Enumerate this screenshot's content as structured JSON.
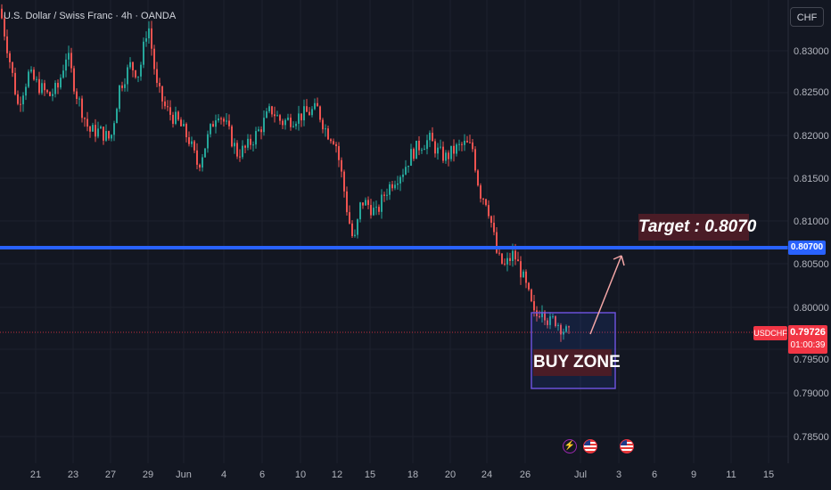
{
  "header": {
    "title": "U.S. Dollar / Swiss Franc · 4h · OANDA"
  },
  "currency_badge": "CHF",
  "price_axis": [
    "0.83000",
    "0.82500",
    "0.82000",
    "0.81500",
    "0.81000",
    "0.80500",
    "0.80000",
    "0.79500",
    "0.79000",
    "0.78500"
  ],
  "time_axis": [
    "21",
    "23",
    "27",
    "29",
    "Jun",
    "4",
    "6",
    "10",
    "12",
    "15",
    "18",
    "20",
    "24",
    "26",
    "Jul",
    "3",
    "6",
    "9",
    "11",
    "15"
  ],
  "level_line": {
    "price": "0.80700",
    "color": "#2962ff"
  },
  "last_price": {
    "symbol": "USDCHF",
    "price": "0.79726",
    "countdown": "01:00:39",
    "color": "#f23645"
  },
  "annotations": {
    "target": "Target : 0.8070",
    "buy_zone": "BUY ZONE"
  },
  "events": [
    {
      "type": "flash-icon"
    },
    {
      "type": "us-flag-icon"
    },
    {
      "type": "us-flag-icon"
    }
  ],
  "colors": {
    "background": "#131722",
    "up": "#26a69a",
    "down": "#ef5350",
    "grid": "#1e222d"
  },
  "chart_data": {
    "type": "candlestick",
    "symbol": "USDCHF",
    "timeframe": "4h",
    "ylim": [
      0.7825,
      0.8355
    ],
    "close_path": [
      [
        0,
        0.8345
      ],
      [
        12,
        0.828
      ],
      [
        20,
        0.8235
      ],
      [
        32,
        0.827
      ],
      [
        45,
        0.8255
      ],
      [
        55,
        0.8245
      ],
      [
        65,
        0.8255
      ],
      [
        75,
        0.8295
      ],
      [
        85,
        0.825
      ],
      [
        100,
        0.8205
      ],
      [
        112,
        0.8205
      ],
      [
        124,
        0.8195
      ],
      [
        134,
        0.8255
      ],
      [
        146,
        0.828
      ],
      [
        156,
        0.827
      ],
      [
        166,
        0.833
      ],
      [
        176,
        0.8255
      ],
      [
        186,
        0.823
      ],
      [
        200,
        0.8215
      ],
      [
        212,
        0.8195
      ],
      [
        222,
        0.8165
      ],
      [
        234,
        0.82
      ],
      [
        244,
        0.823
      ],
      [
        254,
        0.821
      ],
      [
        266,
        0.818
      ],
      [
        276,
        0.8185
      ],
      [
        290,
        0.8205
      ],
      [
        304,
        0.823
      ],
      [
        316,
        0.8215
      ],
      [
        330,
        0.822
      ],
      [
        342,
        0.8225
      ],
      [
        356,
        0.823
      ],
      [
        366,
        0.8205
      ],
      [
        376,
        0.8195
      ],
      [
        384,
        0.815
      ],
      [
        390,
        0.811
      ],
      [
        397,
        0.8075
      ],
      [
        405,
        0.8125
      ],
      [
        414,
        0.812
      ],
      [
        422,
        0.811
      ],
      [
        432,
        0.8135
      ],
      [
        442,
        0.815
      ],
      [
        452,
        0.816
      ],
      [
        462,
        0.818
      ],
      [
        472,
        0.819
      ],
      [
        482,
        0.8195
      ],
      [
        492,
        0.818
      ],
      [
        500,
        0.8175
      ],
      [
        512,
        0.8185
      ],
      [
        522,
        0.819
      ],
      [
        530,
        0.8185
      ],
      [
        538,
        0.8135
      ],
      [
        546,
        0.8125
      ],
      [
        552,
        0.8095
      ],
      [
        558,
        0.806
      ],
      [
        566,
        0.805
      ],
      [
        576,
        0.8065
      ],
      [
        584,
        0.8045
      ],
      [
        592,
        0.802
      ],
      [
        600,
        0.799
      ],
      [
        608,
        0.8005
      ],
      [
        616,
        0.7985
      ],
      [
        622,
        0.799
      ],
      [
        630,
        0.798
      ],
      [
        640,
        0.797
      ]
    ]
  }
}
